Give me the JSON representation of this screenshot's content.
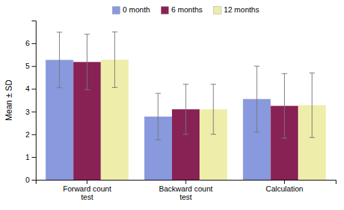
{
  "chart_data": {
    "type": "bar",
    "categories": [
      "Forward count\ntest",
      "Backward count\ntest",
      "Calculation"
    ],
    "series": [
      {
        "name": "0 month",
        "color": "#8899dd",
        "values": [
          5.27,
          2.78,
          3.55
        ],
        "errors": [
          1.22,
          1.02,
          1.45
        ]
      },
      {
        "name": "6 months",
        "color": "#882255",
        "values": [
          5.18,
          3.1,
          3.25
        ],
        "errors": [
          1.22,
          1.1,
          1.42
        ]
      },
      {
        "name": "12 months",
        "color": "#eeeeaa",
        "values": [
          5.28,
          3.1,
          3.28
        ],
        "errors": [
          1.22,
          1.1,
          1.42
        ]
      }
    ],
    "ylabel": "Mean ± SD",
    "ylim": [
      0,
      7
    ],
    "yticks": [
      0,
      1,
      2,
      3,
      4,
      5,
      6
    ],
    "grid": false,
    "legend": "top"
  }
}
